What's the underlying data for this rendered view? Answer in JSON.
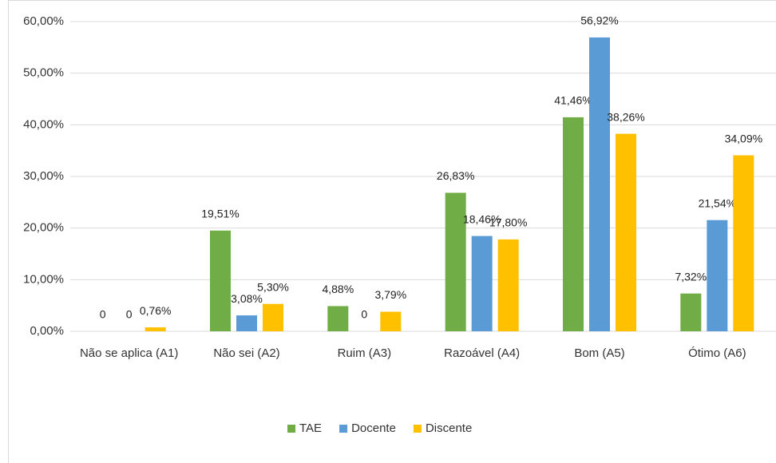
{
  "chart_data": {
    "type": "bar",
    "categories": [
      "Não se aplica (A1)",
      "Não sei (A2)",
      "Ruim (A3)",
      "Razoável (A4)",
      "Bom (A5)",
      "Ótimo (A6)"
    ],
    "series": [
      {
        "name": "TAE",
        "color": "#70ad47",
        "values": [
          0,
          19.51,
          4.88,
          26.83,
          41.46,
          7.32
        ],
        "value_labels": [
          "0",
          "19,51%",
          "4,88%",
          "26,83%",
          "41,46%",
          "7,32%"
        ]
      },
      {
        "name": "Docente",
        "color": "#5b9bd5",
        "values": [
          0,
          3.08,
          0,
          18.46,
          56.92,
          21.54
        ],
        "value_labels": [
          "0",
          "3,08%",
          "0",
          "18,46%",
          "56,92%",
          "21,54%"
        ]
      },
      {
        "name": "Discente",
        "color": "#ffc000",
        "values": [
          0.76,
          5.3,
          3.79,
          17.8,
          38.26,
          34.09
        ],
        "value_labels": [
          "0,76%",
          "5,30%",
          "3,79%",
          "17,80%",
          "38,26%",
          "34,09%"
        ]
      }
    ],
    "ylim": [
      0,
      60
    ],
    "yticks": [
      {
        "value": 0,
        "label": "0,00%"
      },
      {
        "value": 10,
        "label": "10,00%"
      },
      {
        "value": 20,
        "label": "20,00%"
      },
      {
        "value": 30,
        "label": "30,00%"
      },
      {
        "value": 40,
        "label": "40,00%"
      },
      {
        "value": 50,
        "label": "50,00%"
      },
      {
        "value": 60,
        "label": "60,00%"
      }
    ],
    "grid": true,
    "legend": "bottom"
  }
}
